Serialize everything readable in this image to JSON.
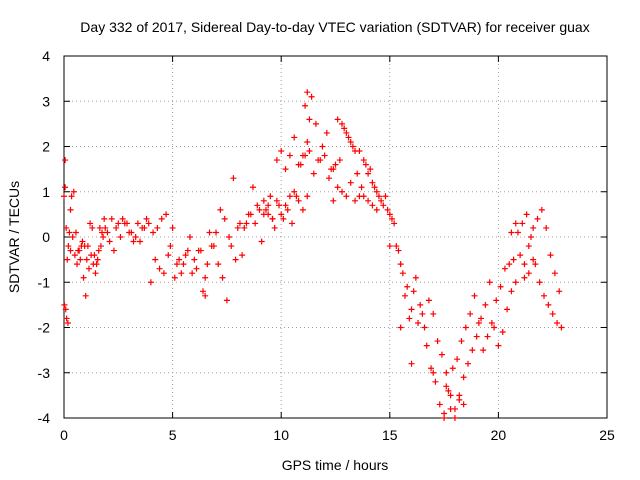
{
  "chart_data": {
    "type": "scatter",
    "title": "Day 332 of 2017, Sidereal Day-to-day VTEC variation (SDTVAR) for receiver guax",
    "xlabel": "GPS time / hours",
    "ylabel": "SDTVAR / TECUs",
    "xlim": [
      0,
      25
    ],
    "ylim": [
      -4,
      4
    ],
    "xticks": [
      "0",
      "5",
      "10",
      "15",
      "20",
      "25"
    ],
    "yticks": [
      "-4",
      "-3",
      "-2",
      "-1",
      "0",
      "1",
      "2",
      "3",
      "4"
    ],
    "grid": true,
    "marker": "+",
    "series": [
      {
        "name": "SDTVAR",
        "color": "#ff0000",
        "x": [
          0.0,
          0.05,
          0.1,
          0.15,
          0.2,
          0.25,
          0.3,
          0.4,
          0.5,
          0.6,
          0.7,
          0.8,
          0.9,
          1.0,
          1.1,
          1.2,
          1.3,
          1.4,
          1.5,
          1.6,
          1.7,
          1.8,
          1.9,
          2.0,
          2.2,
          2.4,
          2.6,
          2.8,
          3.0,
          3.2,
          3.4,
          3.6,
          3.8,
          4.0,
          4.2,
          4.4,
          4.6,
          4.8,
          5.0,
          5.2,
          5.4,
          5.6,
          5.8,
          6.0,
          6.2,
          6.4,
          6.6,
          6.8,
          7.0,
          7.2,
          7.4,
          7.6,
          7.8,
          8.0,
          8.2,
          8.4,
          8.6,
          8.8,
          9.0,
          9.2,
          9.4,
          9.6,
          9.8,
          10.0,
          10.2,
          10.4,
          10.6,
          10.8,
          11.0,
          11.2,
          11.4,
          11.6,
          11.8,
          12.0,
          12.2,
          12.4,
          12.6,
          12.8,
          13.0,
          13.2,
          13.4,
          13.6,
          13.8,
          14.0,
          14.2,
          14.4,
          14.6,
          14.8,
          15.0,
          15.2,
          15.4,
          15.6,
          15.8,
          16.0,
          16.2,
          16.4,
          16.6,
          16.8,
          17.0,
          17.2,
          17.4,
          17.6,
          17.8,
          18.0,
          18.2,
          18.4,
          18.6,
          18.8,
          19.0,
          19.2,
          19.4,
          19.6,
          19.8,
          20.0,
          20.2,
          20.4,
          20.6,
          20.8,
          21.0,
          21.2,
          21.4,
          21.6,
          21.8,
          22.0,
          22.2,
          22.4,
          22.6,
          22.8,
          0.02,
          0.08,
          0.12,
          0.18,
          0.3,
          0.35,
          0.45,
          0.55,
          0.65,
          0.75,
          0.85,
          0.95,
          1.05,
          1.15,
          1.25,
          1.35,
          1.45,
          1.55,
          1.65,
          1.75,
          1.85,
          2.1,
          2.3,
          2.5,
          2.7,
          2.9,
          3.1,
          3.3,
          3.5,
          3.7,
          3.9,
          4.1,
          4.3,
          4.5,
          4.7,
          4.9,
          5.1,
          5.3,
          5.5,
          5.7,
          5.9,
          6.1,
          6.3,
          6.5,
          6.7,
          6.9,
          7.1,
          7.3,
          7.5,
          7.7,
          7.9,
          8.1,
          8.3,
          8.5,
          8.7,
          8.9,
          9.1,
          9.3,
          9.5,
          9.7,
          9.9,
          10.1,
          10.3,
          10.5,
          10.7,
          10.9,
          11.1,
          11.3,
          11.5,
          11.7,
          11.9,
          12.1,
          12.3,
          12.5,
          12.7,
          12.9,
          13.1,
          13.3,
          13.5,
          13.7,
          13.9,
          14.1,
          14.3,
          14.5,
          14.7,
          14.9,
          15.1,
          15.3,
          15.5,
          15.7,
          15.9,
          16.1,
          16.3,
          16.5,
          16.7,
          16.9,
          17.1,
          17.3,
          17.5,
          17.7,
          17.9,
          18.1,
          18.3,
          18.5,
          18.7,
          18.9,
          19.1,
          19.3,
          19.5,
          19.7,
          19.9,
          20.1,
          20.3,
          20.5,
          20.7,
          20.9,
          21.1,
          21.3,
          21.5,
          21.7,
          21.9,
          22.1,
          22.3,
          22.5,
          22.7,
          22.9,
          9.2,
          9.4,
          9.6,
          9.8,
          10.0,
          10.2,
          10.4,
          10.6,
          10.8,
          11.0,
          11.2,
          12.4,
          12.6,
          12.8,
          13.0,
          13.2,
          13.4,
          13.6,
          13.8,
          14.0,
          14.2,
          14.4,
          11.1,
          11.2,
          11.3,
          0.05,
          6.5,
          15.0,
          15.5,
          16.0,
          17.0,
          17.5,
          17.6,
          17.8,
          18.0,
          18.2,
          18.4,
          20.6,
          20.8,
          21.2,
          21.4,
          21.6
        ],
        "y": [
          0.9,
          1.1,
          0.2,
          -0.5,
          -0.2,
          0.1,
          -0.3,
          0.0,
          -0.4,
          -0.6,
          -0.3,
          -0.2,
          -0.9,
          -1.3,
          -0.2,
          0.3,
          0.2,
          -0.4,
          -0.6,
          -0.3,
          -0.2,
          0.0,
          0.2,
          0.1,
          0.4,
          0.2,
          0.0,
          0.3,
          0.1,
          -0.1,
          0.3,
          0.2,
          0.4,
          -1.0,
          -0.5,
          -0.7,
          -0.8,
          -0.4,
          0.2,
          -0.6,
          -0.8,
          -0.4,
          0.0,
          -0.5,
          -0.3,
          -1.2,
          -0.6,
          -0.2,
          0.1,
          0.6,
          0.4,
          0.0,
          1.3,
          0.2,
          -0.4,
          0.3,
          0.5,
          0.3,
          0.6,
          0.8,
          0.5,
          0.4,
          1.7,
          1.9,
          1.5,
          1.8,
          2.2,
          1.6,
          1.8,
          2.1,
          3.1,
          2.5,
          1.7,
          1.8,
          1.3,
          1.5,
          2.6,
          2.5,
          2.3,
          2.1,
          1.9,
          1.9,
          1.7,
          1.4,
          1.2,
          1.0,
          0.8,
          0.9,
          0.5,
          0.3,
          -0.3,
          -0.8,
          -1.1,
          -1.6,
          -0.9,
          -1.5,
          -2.0,
          -1.4,
          -1.7,
          -2.3,
          -2.6,
          -3.0,
          -3.5,
          -3.8,
          -3.6,
          -3.1,
          -2.8,
          -2.5,
          -2.2,
          -1.8,
          -1.5,
          -1.0,
          -2.0,
          -2.4,
          -2.1,
          -1.6,
          -1.2,
          -1.0,
          -0.4,
          -0.9,
          -0.2,
          0.2,
          0.4,
          0.6,
          0.2,
          -0.4,
          -0.8,
          -1.2,
          -1.5,
          -1.6,
          -1.8,
          -1.9,
          0.6,
          0.9,
          1.0,
          0.1,
          -0.3,
          -0.5,
          -0.1,
          -0.2,
          -0.5,
          -0.7,
          -0.4,
          -0.6,
          -0.8,
          -0.5,
          0.2,
          0.1,
          0.4,
          -0.1,
          -0.3,
          0.3,
          0.4,
          0.3,
          0.1,
          0.0,
          -0.1,
          0.2,
          0.3,
          0.1,
          0.2,
          0.4,
          0.5,
          -0.2,
          -0.9,
          -0.5,
          -0.6,
          -0.3,
          -0.8,
          -0.7,
          -0.3,
          -0.9,
          0.1,
          -0.2,
          -0.6,
          -0.9,
          -1.4,
          -0.2,
          -0.5,
          0.3,
          0.2,
          0.5,
          1.1,
          0.7,
          -0.1,
          0.6,
          0.9,
          0.2,
          0.7,
          0.4,
          0.6,
          0.3,
          0.9,
          1.6,
          1.8,
          1.9,
          1.4,
          1.7,
          2.0,
          2.3,
          1.5,
          1.6,
          1.7,
          2.4,
          2.2,
          2.0,
          1.4,
          1.1,
          1.6,
          1.5,
          1.1,
          0.9,
          0.7,
          0.6,
          0.4,
          -0.2,
          -0.6,
          -1.3,
          -1.8,
          -1.2,
          -1.9,
          -1.7,
          -2.4,
          -2.9,
          -3.2,
          -3.7,
          -3.9,
          -3.4,
          -2.9,
          -2.7,
          -2.3,
          -2.0,
          -1.7,
          -1.3,
          -1.9,
          -2.5,
          -2.2,
          -1.9,
          -1.4,
          -1.1,
          -0.7,
          -0.6,
          -0.5,
          0.1,
          0.3,
          0.5,
          0.0,
          -0.6,
          -1.0,
          -1.3,
          -1.5,
          -1.7,
          -1.9,
          -2.0,
          0.5,
          0.7,
          0.4,
          0.8,
          0.5,
          0.7,
          0.9,
          1.0,
          0.8,
          0.6,
          0.9,
          0.8,
          1.1,
          1.0,
          0.9,
          1.2,
          0.8,
          0.9,
          0.9,
          0.8,
          0.7,
          0.6,
          2.9,
          3.2,
          2.6,
          1.7,
          -1.3,
          -0.2,
          -2.0,
          -2.8,
          -3.0,
          -4.0,
          -3.3,
          -3.8,
          -4.0,
          -3.5,
          -3.7,
          0.1,
          0.3,
          -0.6,
          -0.8,
          -0.5
        ]
      }
    ]
  }
}
